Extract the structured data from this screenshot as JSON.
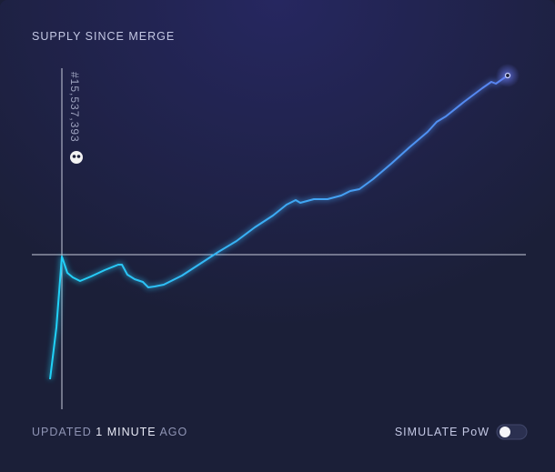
{
  "chart_data": {
    "type": "line",
    "title": "SUPPLY SINCE MERGE",
    "annotation": "#15,537,393",
    "footer": {
      "prefix": "UPDATED",
      "emphasis": "1 MINUTE",
      "suffix": "AGO"
    },
    "toggle_label": "SIMULATE PoW",
    "x": [
      20,
      27,
      33,
      39,
      45,
      53,
      65,
      80,
      95,
      99,
      105,
      113,
      122,
      128,
      135,
      145,
      165,
      185,
      205,
      225,
      245,
      265,
      280,
      290,
      295,
      310,
      325,
      340,
      350,
      360,
      375,
      395,
      415,
      435,
      445,
      455,
      475,
      495,
      505,
      510,
      523
    ],
    "values": [
      -137,
      -80,
      -2,
      -20,
      -25,
      -29,
      -24,
      -17,
      -11,
      -11,
      -22,
      -27,
      -30,
      -36,
      -35,
      -33,
      -23,
      -10,
      3,
      15,
      30,
      43,
      55,
      60,
      57,
      61,
      61,
      65,
      70,
      72,
      83,
      100,
      118,
      135,
      146,
      152,
      168,
      183,
      190,
      188,
      197
    ],
    "xlim": [
      0,
      543
    ],
    "ylim": [
      -200,
      205
    ],
    "gradient": [
      "#1ed6f8",
      "#5c7ff0"
    ]
  }
}
